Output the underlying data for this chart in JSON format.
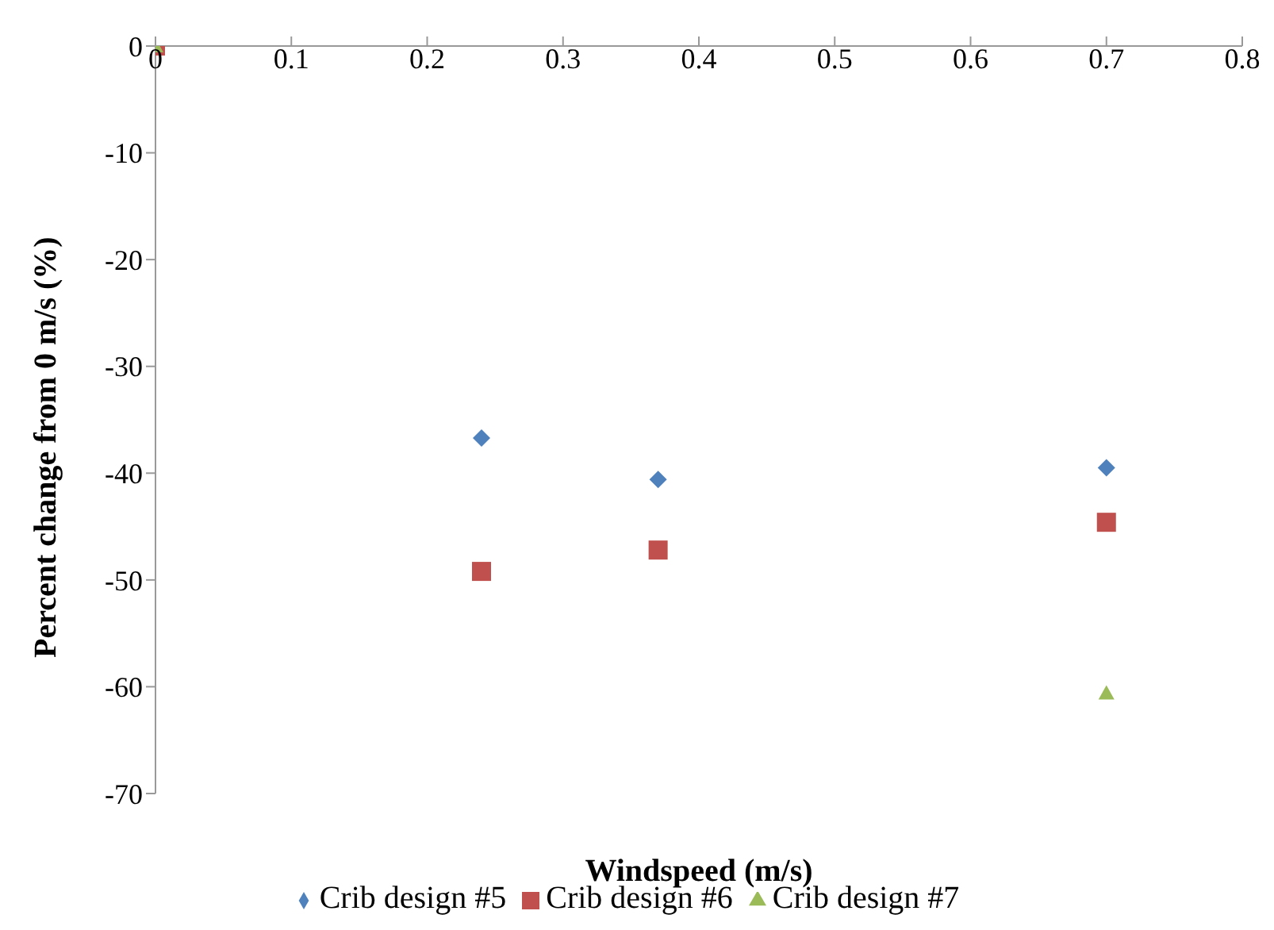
{
  "chart_data": {
    "type": "scatter",
    "xlabel": "Windspeed (m/s)",
    "ylabel": "Percent change from 0 m/s (%)",
    "xlim": [
      0,
      0.8
    ],
    "xticks": [
      0,
      0.1,
      0.2,
      0.3,
      0.4,
      0.5,
      0.6,
      0.7,
      0.8
    ],
    "ylim": [
      -70,
      0
    ],
    "yticks": [
      -70,
      -60,
      -50,
      -40,
      -30,
      -20,
      -10,
      0
    ],
    "grid": false,
    "legend": "bottom",
    "series": [
      {
        "name": "Crib design #5",
        "color": "#4f81bd",
        "marker": "diamond",
        "x": [
          0.24,
          0.37,
          0.7
        ],
        "values": [
          -36.7,
          -40.6,
          -39.5
        ]
      },
      {
        "name": "Crib design #6",
        "color": "#c0504d",
        "marker": "square",
        "x": [
          0,
          0.24,
          0.37,
          0.7
        ],
        "values": [
          0,
          -49.2,
          -47.2,
          -44.6
        ]
      },
      {
        "name": "Crib design #7",
        "color": "#9bbb59",
        "marker": "triangle",
        "x": [
          0,
          0.7
        ],
        "values": [
          0,
          -60.6
        ]
      }
    ]
  }
}
